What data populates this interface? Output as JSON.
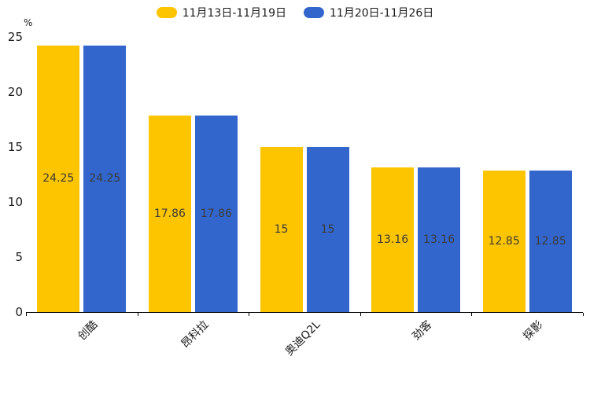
{
  "chart_data": {
    "type": "bar",
    "title": "",
    "xlabel": "",
    "ylabel": "%",
    "categories": [
      "创酷",
      "昂科拉",
      "奥迪Q2L",
      "劲客",
      "探影"
    ],
    "series": [
      {
        "name": "11月13日-11月19日",
        "color": "#FDC500",
        "values": [
          24.25,
          17.86,
          15,
          13.16,
          12.85
        ]
      },
      {
        "name": "11月20日-11月26日",
        "color": "#3366CC",
        "values": [
          24.25,
          17.86,
          15,
          13.16,
          12.85
        ]
      }
    ],
    "bar_value_labels": [
      [
        "24.25",
        "17.86",
        "15",
        "13.16",
        "12.85"
      ],
      [
        "24.25",
        "17.86",
        "15",
        "13.16",
        "12.85"
      ]
    ],
    "yticks": [
      0,
      5,
      10,
      15,
      20,
      25
    ],
    "ylim": [
      0,
      25
    ],
    "grid": false,
    "legend_position": "top-center",
    "axis_color": "#000000",
    "text_color": "#1a1a1a",
    "bar_label_color": "#3b3b3b",
    "background_color": "#ffffff"
  }
}
